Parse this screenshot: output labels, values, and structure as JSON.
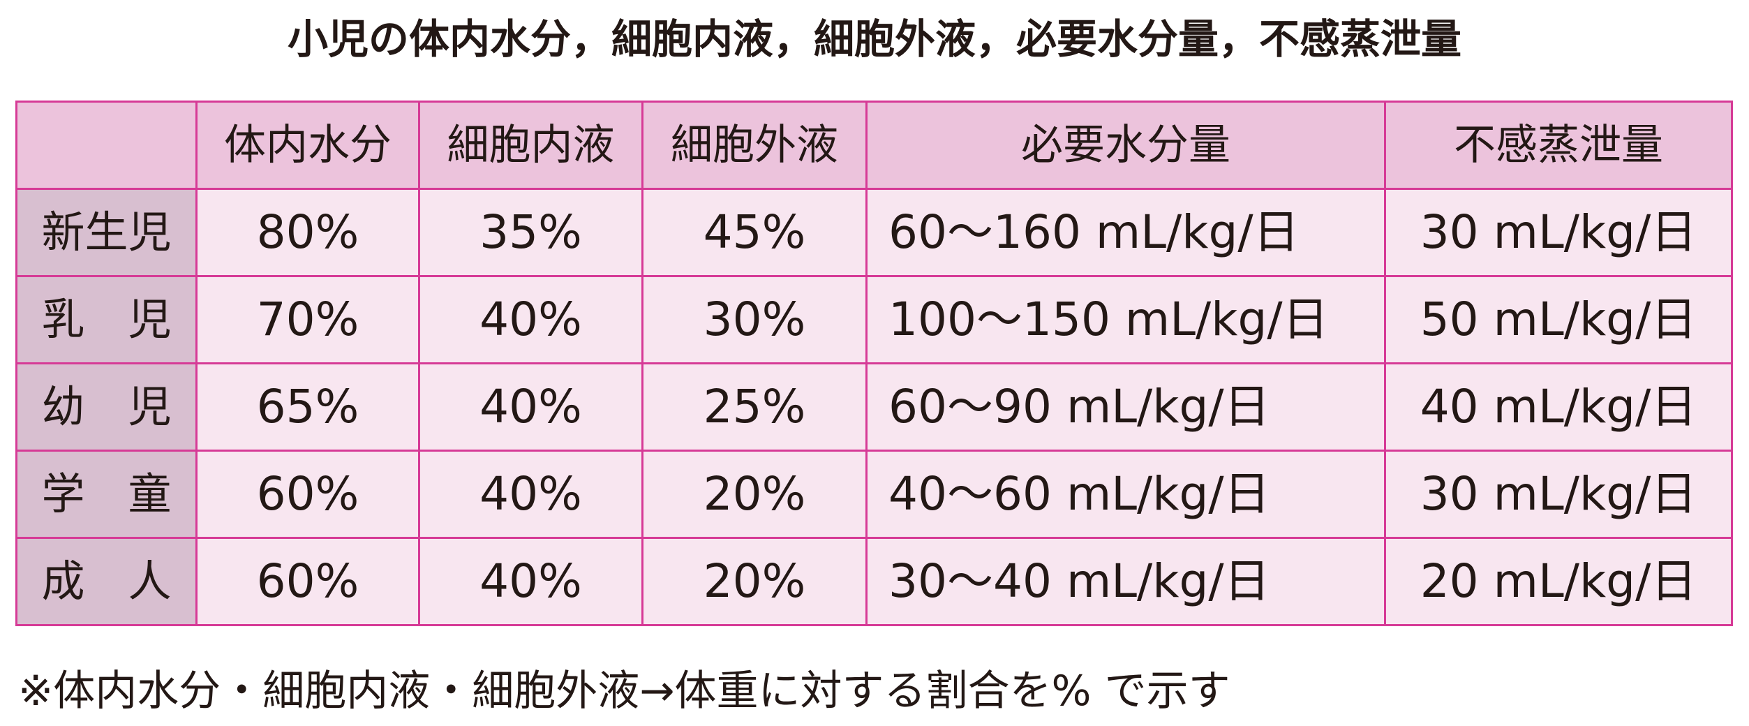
{
  "title": "小児の体内水分，細胞内液，細胞外液，必要水分量，不感蒸泄量",
  "table": {
    "columns": [
      "体内水分",
      "細胞内液",
      "細胞外液",
      "必要水分量",
      "不感蒸泄量"
    ],
    "rows": [
      [
        "新生児",
        "80%",
        "35%",
        "45%",
        "60～160 mL/kg/日",
        "30 mL/kg/日"
      ],
      [
        "乳　児",
        "70%",
        "40%",
        "30%",
        "100～150 mL/kg/日",
        "50 mL/kg/日"
      ],
      [
        "幼　児",
        "65%",
        "40%",
        "25%",
        "60～90 mL/kg/日",
        "40 mL/kg/日"
      ],
      [
        "学　童",
        "60%",
        "40%",
        "20%",
        "40～60 mL/kg/日",
        "30 mL/kg/日"
      ],
      [
        "成　人",
        "60%",
        "40%",
        "20%",
        "30～40 mL/kg/日",
        "20 mL/kg/日"
      ]
    ]
  },
  "footnote": "※体内水分・細胞内液・細胞外液→体重に対する割合を% で示す"
}
